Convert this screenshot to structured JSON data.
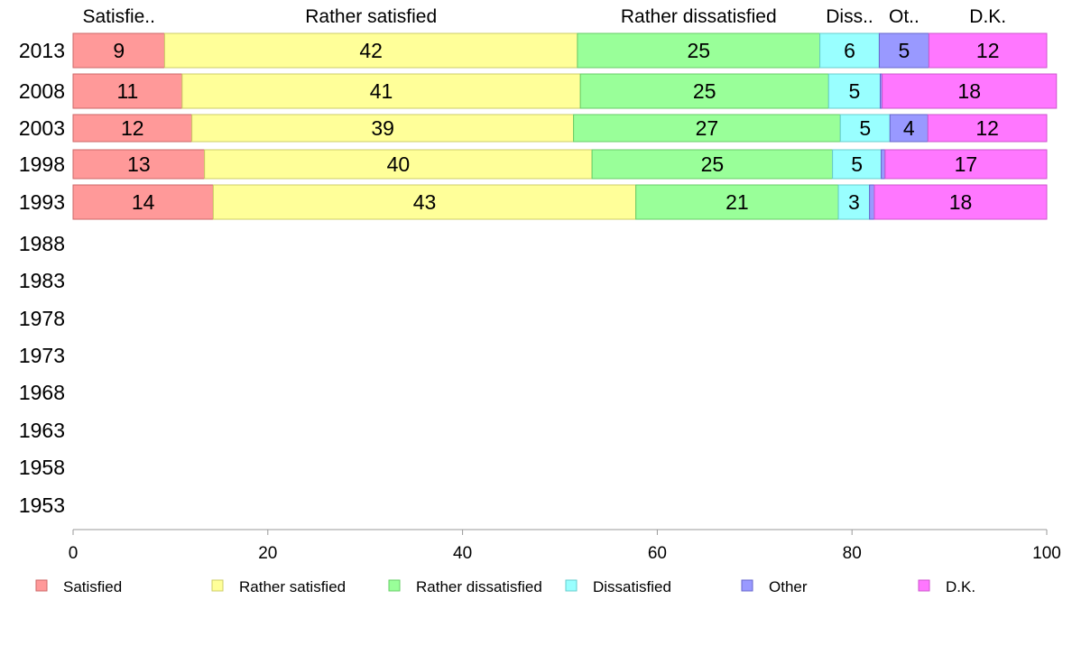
{
  "chart_data": {
    "type": "bar",
    "orientation": "horizontal",
    "stacked": true,
    "title": "",
    "xlabel": "",
    "ylabel": "",
    "xlim": [
      0,
      100
    ],
    "x_ticks": [
      "0",
      "20",
      "40",
      "60",
      "80",
      "100"
    ],
    "categories": [
      "2013",
      "2008",
      "2003",
      "1998",
      "1993",
      "1988",
      "1983",
      "1978",
      "1973",
      "1968",
      "1963",
      "1958",
      "1953"
    ],
    "column_headers": [
      "Satisfie..",
      "Rather satisfied",
      "Rather dissatisfied",
      "Diss..",
      "Ot..",
      "D.K."
    ],
    "grid": false,
    "legend_position": "bottom",
    "series": [
      {
        "name": "Satisfied",
        "color": "#ff9999",
        "border": "#cc6666",
        "values": [
          9.4,
          11.2,
          12.2,
          13.5,
          14.4,
          null,
          null,
          null,
          null,
          null,
          null,
          null,
          null
        ],
        "labels": [
          "9",
          "11",
          "12",
          "13",
          "14",
          "",
          "",
          "",
          "",
          "",
          "",
          "",
          ""
        ]
      },
      {
        "name": "Rather satisfied",
        "color": "#ffff99",
        "border": "#cccc66",
        "values": [
          42.4,
          40.9,
          39.2,
          39.8,
          43.4,
          null,
          null,
          null,
          null,
          null,
          null,
          null,
          null
        ],
        "labels": [
          "42",
          "41",
          "39",
          "40",
          "43",
          "",
          "",
          "",
          "",
          "",
          "",
          "",
          ""
        ]
      },
      {
        "name": "Rather dissatisfied",
        "color": "#99ff99",
        "border": "#66cc66",
        "values": [
          24.9,
          25.5,
          27.4,
          24.7,
          20.8,
          null,
          null,
          null,
          null,
          null,
          null,
          null,
          null
        ],
        "labels": [
          "25",
          "25",
          "27",
          "25",
          "21",
          "",
          "",
          "",
          "",
          "",
          "",
          "",
          ""
        ]
      },
      {
        "name": "Dissatisfied",
        "color": "#99ffff",
        "border": "#66cccc",
        "values": [
          6.1,
          5.3,
          5.1,
          5.0,
          3.2,
          null,
          null,
          null,
          null,
          null,
          null,
          null,
          null
        ],
        "labels": [
          "6",
          "5",
          "5",
          "5",
          "3",
          "",
          "",
          "",
          "",
          "",
          "",
          "",
          ""
        ]
      },
      {
        "name": "Other",
        "color": "#9999ff",
        "border": "#6666cc",
        "values": [
          5.1,
          0.2,
          3.9,
          0.4,
          0.5,
          null,
          null,
          null,
          null,
          null,
          null,
          null,
          null
        ],
        "labels": [
          "5",
          "",
          "4",
          "",
          "",
          "",
          "",
          "",
          "",
          "",
          "",
          "",
          ""
        ]
      },
      {
        "name": "D.K.",
        "color": "#ff77ff",
        "border": "#cc55cc",
        "values": [
          12.1,
          17.9,
          12.2,
          16.6,
          17.7,
          null,
          null,
          null,
          null,
          null,
          null,
          null,
          null
        ],
        "labels": [
          "12",
          "18",
          "12",
          "17",
          "18",
          "",
          "",
          "",
          "",
          "",
          "",
          "",
          ""
        ]
      }
    ]
  }
}
